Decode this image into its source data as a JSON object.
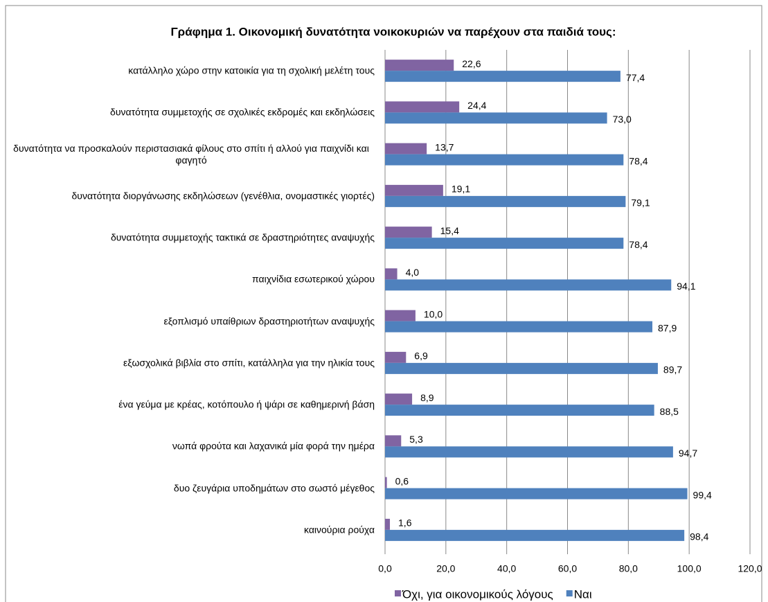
{
  "chart_data": {
    "type": "bar",
    "orientation": "horizontal",
    "title": "Γράφημα 1. Οικονομική δυνατότητα νοικοκυριών να παρέχουν στα παιδιά τους:",
    "categories": [
      "κατάλληλο χώρο στην κατοικία για τη σχολική μελέτη τους",
      "δυνατότητα συμμετοχής σε σχολικές εκδρομές και εκδηλώσεις",
      "δυνατότητα να προσκαλούν περιστασιακά φίλους στο σπίτι ή αλλού για παιχνίδι και φαγητό",
      "δυνατότητα διοργάνωσης εκδηλώσεων (γενέθλια, ονομαστικές γιορτές)",
      "δυνατότητα συμμετοχής τακτικά σε δραστηριότητες αναψυχής",
      "παιχνίδια εσωτερικού χώρου",
      "εξοπλισμό υπαίθριων δραστηριοτήτων αναψυχής",
      "εξωσχολικά βιβλία στο σπίτι, κατάλληλα για την ηλικία τους",
      "ένα γεύμα με κρέας, κοτόπουλο ή ψάρι σε καθημερινή βάση",
      "νωπά φρούτα και λαχανικά μία φορά την ημέρα",
      "δυο ζευγάρια υποδημάτων στο σωστό μέγεθος",
      "καινούρια ρούχα"
    ],
    "series": [
      {
        "name": "Όχι, για οικονομικούς λόγους",
        "color": "#8064a2",
        "values": [
          22.6,
          24.4,
          13.7,
          19.1,
          15.4,
          4.0,
          10.0,
          6.9,
          8.9,
          5.3,
          0.6,
          1.6
        ],
        "value_labels": [
          "22,6",
          "24,4",
          "13,7",
          "19,1",
          "15,4",
          "4,0",
          "10,0",
          "6,9",
          "8,9",
          "5,3",
          "0,6",
          "1,6"
        ]
      },
      {
        "name": "Ναι",
        "color": "#4f81bd",
        "values": [
          77.4,
          73.0,
          78.4,
          79.1,
          78.4,
          94.1,
          87.9,
          89.7,
          88.5,
          94.7,
          99.4,
          98.4
        ],
        "value_labels": [
          "77,4",
          "73,0",
          "78,4",
          "79,1",
          "78,4",
          "94,1",
          "87,9",
          "89,7",
          "88,5",
          "94,7",
          "99,4",
          "98,4"
        ]
      }
    ],
    "xlim": [
      0,
      120
    ],
    "xticks": [
      {
        "value": 0,
        "label": "0,0"
      },
      {
        "value": 20,
        "label": "20,0"
      },
      {
        "value": 40,
        "label": "40,0"
      },
      {
        "value": 60,
        "label": "60,0"
      },
      {
        "value": 80,
        "label": "80,0"
      },
      {
        "value": 100,
        "label": "100,0"
      },
      {
        "value": 120,
        "label": "120,0"
      }
    ],
    "grid": true,
    "legend": "bottom"
  }
}
